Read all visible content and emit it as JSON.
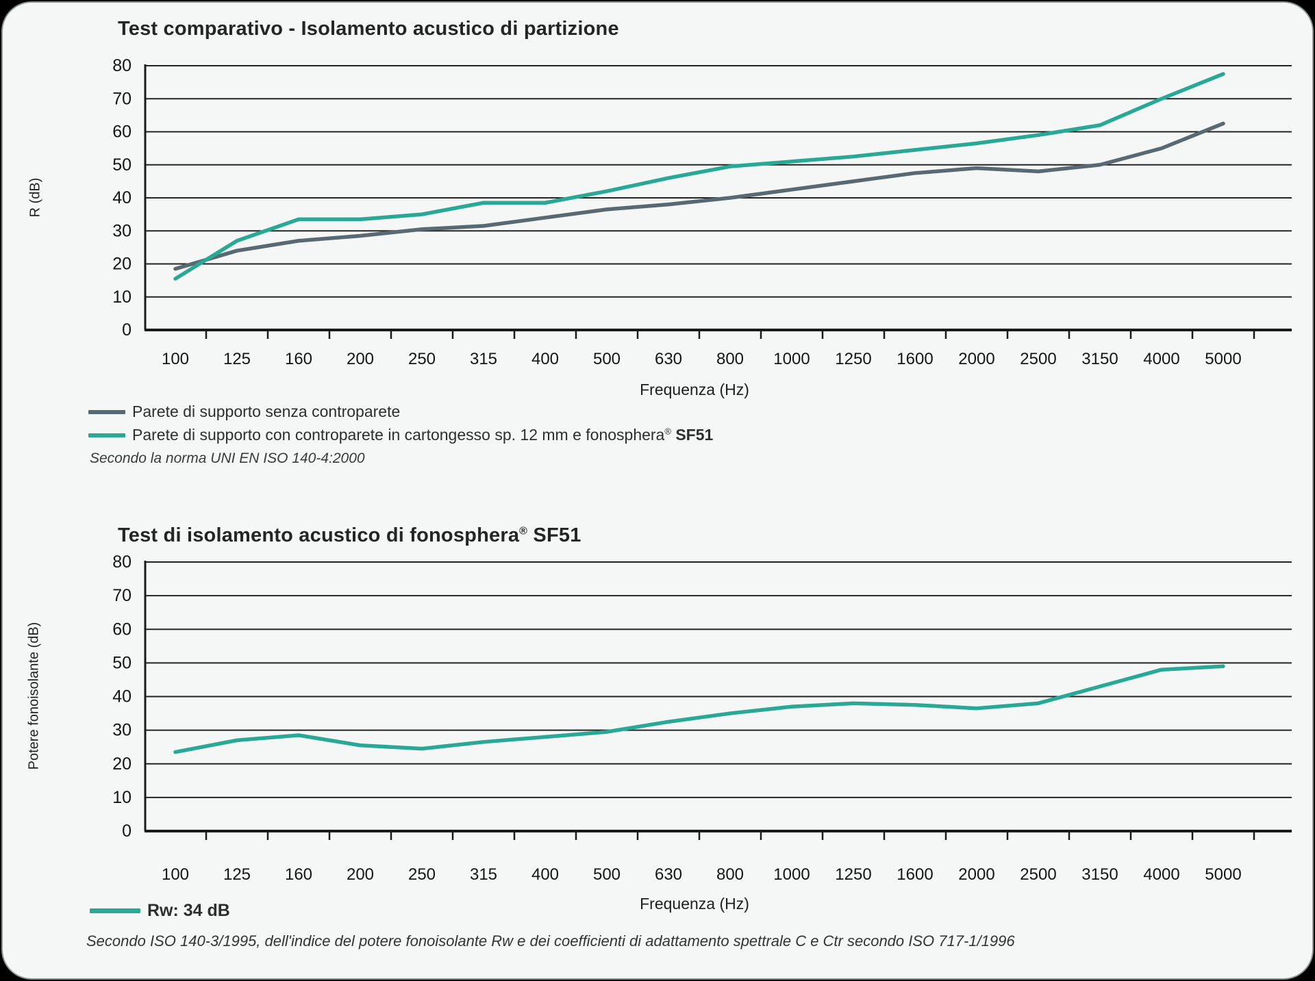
{
  "page": {
    "background_color": "#f5f6f6",
    "accent_teal": "#2aa896",
    "accent_slate": "#596974"
  },
  "chart_data": [
    {
      "type": "line",
      "title": "Test comparativo - Isolamento acustico di partizione",
      "xlabel": "Frequenza (Hz)",
      "ylabel": "R (dB)",
      "ylim": [
        0,
        80
      ],
      "ytick_step": 10,
      "yticks": [
        "80",
        "70",
        "60",
        "50",
        "40",
        "30",
        "20",
        "10",
        "0"
      ],
      "grid": true,
      "legend_position": "below",
      "categories": [
        "100",
        "125",
        "160",
        "200",
        "250",
        "315",
        "400",
        "500",
        "630",
        "800",
        "1000",
        "1250",
        "1600",
        "2000",
        "2500",
        "3150",
        "4000",
        "5000"
      ],
      "series": [
        {
          "name": "Parete di supporto senza controparete",
          "color": "#596974",
          "values": [
            18.5,
            24,
            27,
            28.5,
            30.5,
            31.5,
            34,
            36.5,
            38,
            40,
            42.5,
            45,
            47.5,
            49,
            48,
            50,
            55,
            62.5
          ]
        },
        {
          "name": "Parete di supporto con controparete in cartongesso sp. 12 mm e fonosphera® SF51",
          "name_main": "Parete di supporto con controparete in cartongesso sp. 12 mm e fonosphera",
          "name_sup": "®",
          "name_bold": " SF51",
          "color": "#2aa896",
          "values": [
            15.5,
            27,
            33.5,
            33.5,
            35,
            38.5,
            38.5,
            42,
            46,
            49.5,
            51,
            52.5,
            54.5,
            56.5,
            59,
            62,
            70,
            77.5
          ]
        }
      ],
      "note": "Secondo la norma UNI EN ISO 140-4:2000"
    },
    {
      "type": "line",
      "title": "Test di isolamento acustico di fonosphera® SF51",
      "title_main": "Test di isolamento acustico di fonosphera",
      "title_sup": "®",
      "title_bold": " SF51",
      "xlabel": "Frequenza (Hz)",
      "ylabel": "Potere fonoisolante (dB)",
      "ylim": [
        0,
        80
      ],
      "ytick_step": 10,
      "yticks": [
        "80",
        "70",
        "60",
        "50",
        "40",
        "30",
        "20",
        "10",
        "0"
      ],
      "grid": true,
      "legend_position": "below",
      "categories": [
        "100",
        "125",
        "160",
        "200",
        "250",
        "315",
        "400",
        "500",
        "630",
        "800",
        "1000",
        "1250",
        "1600",
        "2000",
        "2500",
        "3150",
        "4000",
        "5000"
      ],
      "series": [
        {
          "name": "Rw: 34 dB",
          "color": "#2aa896",
          "values": [
            23.5,
            27,
            28.5,
            25.5,
            24.5,
            26.5,
            28,
            29.5,
            32.5,
            35,
            37,
            38,
            37.5,
            36.5,
            38,
            43,
            48,
            49
          ]
        }
      ],
      "note": "Secondo ISO 140-3/1995, dell'indice del potere fonoisolante Rw e dei coefficienti di adattamento spettrale C e Ctr secondo ISO 717-1/1996"
    }
  ]
}
